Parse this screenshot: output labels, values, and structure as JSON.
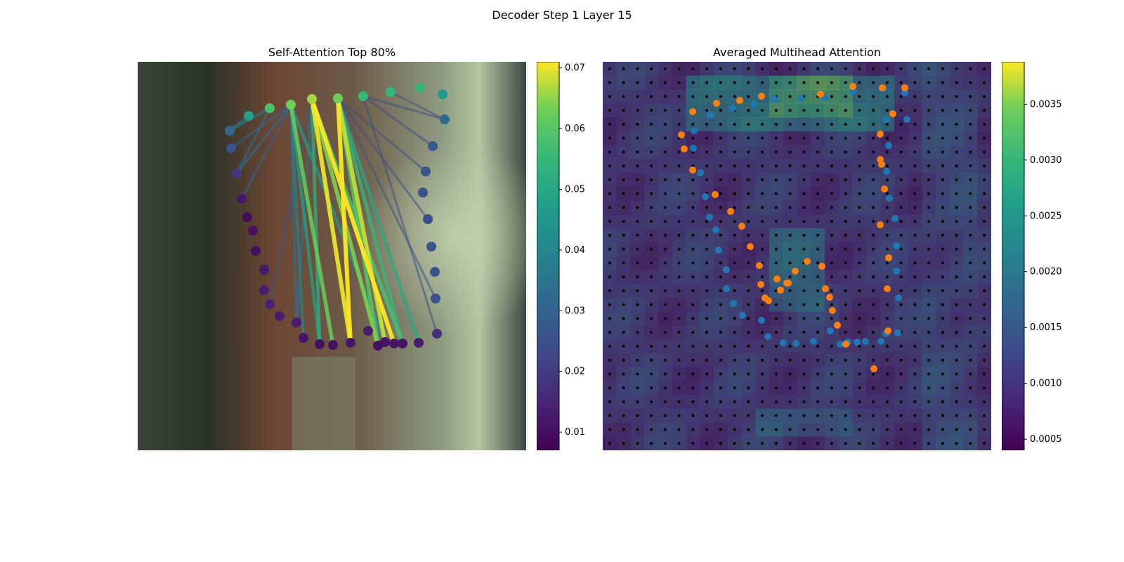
{
  "figure": {
    "suptitle": "Decoder Step 1 Layer 15"
  },
  "chart_data": [
    {
      "type": "scatter",
      "title": "Self-Attention Top 80%",
      "description_series": "keypoints colored by attention weight, with edge lines colored by attention weight",
      "colormap": "viridis",
      "colorbar": {
        "min": 0.007,
        "max": 0.071,
        "ticks": [
          "0.01",
          "0.02",
          "0.03",
          "0.04",
          "0.05",
          "0.06",
          "0.07"
        ]
      },
      "points": [
        {
          "x": 158,
          "y": 77,
          "w": 0.048
        },
        {
          "x": 188,
          "y": 66,
          "w": 0.058
        },
        {
          "x": 218,
          "y": 61,
          "w": 0.063
        },
        {
          "x": 248,
          "y": 53,
          "w": 0.066
        },
        {
          "x": 285,
          "y": 52,
          "w": 0.063
        },
        {
          "x": 321,
          "y": 49,
          "w": 0.055
        },
        {
          "x": 360,
          "y": 43,
          "w": 0.054
        },
        {
          "x": 402,
          "y": 37,
          "w": 0.054
        },
        {
          "x": 434,
          "y": 46,
          "w": 0.046
        },
        {
          "x": 437,
          "y": 82,
          "w": 0.031
        },
        {
          "x": 420,
          "y": 120,
          "w": 0.027
        },
        {
          "x": 410,
          "y": 156,
          "w": 0.026
        },
        {
          "x": 406,
          "y": 186,
          "w": 0.025
        },
        {
          "x": 413,
          "y": 224,
          "w": 0.024
        },
        {
          "x": 418,
          "y": 263,
          "w": 0.026
        },
        {
          "x": 423,
          "y": 299,
          "w": 0.025
        },
        {
          "x": 424,
          "y": 337,
          "w": 0.025
        },
        {
          "x": 426,
          "y": 387,
          "w": 0.017
        },
        {
          "x": 400,
          "y": 400,
          "w": 0.013
        },
        {
          "x": 377,
          "y": 401,
          "w": 0.011
        },
        {
          "x": 365,
          "y": 401,
          "w": 0.011
        },
        {
          "x": 352,
          "y": 399,
          "w": 0.011
        },
        {
          "x": 342,
          "y": 404,
          "w": 0.01
        },
        {
          "x": 328,
          "y": 383,
          "w": 0.013
        },
        {
          "x": 303,
          "y": 400,
          "w": 0.011
        },
        {
          "x": 278,
          "y": 403,
          "w": 0.01
        },
        {
          "x": 259,
          "y": 402,
          "w": 0.01
        },
        {
          "x": 236,
          "y": 393,
          "w": 0.011
        },
        {
          "x": 226,
          "y": 371,
          "w": 0.013
        },
        {
          "x": 202,
          "y": 362,
          "w": 0.013
        },
        {
          "x": 188,
          "y": 345,
          "w": 0.014
        },
        {
          "x": 180,
          "y": 325,
          "w": 0.013
        },
        {
          "x": 180,
          "y": 296,
          "w": 0.012
        },
        {
          "x": 168,
          "y": 269,
          "w": 0.01
        },
        {
          "x": 164,
          "y": 240,
          "w": 0.01
        },
        {
          "x": 156,
          "y": 221,
          "w": 0.009
        },
        {
          "x": 148,
          "y": 195,
          "w": 0.012
        },
        {
          "x": 141,
          "y": 159,
          "w": 0.019
        },
        {
          "x": 133,
          "y": 123,
          "w": 0.025
        },
        {
          "x": 131,
          "y": 98,
          "w": 0.03
        }
      ],
      "edges": [
        {
          "from": 2,
          "to": 21,
          "w": 0.046
        },
        {
          "from": 2,
          "to": 25,
          "w": 0.062
        },
        {
          "from": 2,
          "to": 26,
          "w": 0.048
        },
        {
          "from": 3,
          "to": 20,
          "w": 0.071
        },
        {
          "from": 3,
          "to": 22,
          "w": 0.064
        },
        {
          "from": 3,
          "to": 24,
          "w": 0.07
        },
        {
          "from": 3,
          "to": 26,
          "w": 0.052
        },
        {
          "from": 3,
          "to": 19,
          "w": 0.058
        },
        {
          "from": 4,
          "to": 21,
          "w": 0.068
        },
        {
          "from": 4,
          "to": 22,
          "w": 0.06
        },
        {
          "from": 4,
          "to": 24,
          "w": 0.071
        },
        {
          "from": 4,
          "to": 19,
          "w": 0.055
        },
        {
          "from": 4,
          "to": 18,
          "w": 0.05
        },
        {
          "from": 2,
          "to": 27,
          "w": 0.04
        },
        {
          "from": 2,
          "to": 28,
          "w": 0.034
        },
        {
          "from": 2,
          "to": 36,
          "w": 0.03
        },
        {
          "from": 2,
          "to": 37,
          "w": 0.032
        },
        {
          "from": 2,
          "to": 38,
          "w": 0.03
        },
        {
          "from": 1,
          "to": 39,
          "w": 0.036
        },
        {
          "from": 1,
          "to": 37,
          "w": 0.032
        },
        {
          "from": 0,
          "to": 39,
          "w": 0.034
        },
        {
          "from": 3,
          "to": 28,
          "w": 0.034
        },
        {
          "from": 3,
          "to": 30,
          "w": 0.026
        },
        {
          "from": 4,
          "to": 11,
          "w": 0.024
        },
        {
          "from": 4,
          "to": 13,
          "w": 0.024
        },
        {
          "from": 5,
          "to": 10,
          "w": 0.022
        },
        {
          "from": 5,
          "to": 9,
          "w": 0.024
        },
        {
          "from": 4,
          "to": 16,
          "w": 0.026
        },
        {
          "from": 6,
          "to": 9,
          "w": 0.022
        },
        {
          "from": 5,
          "to": 17,
          "w": 0.024
        }
      ]
    },
    {
      "type": "scatter",
      "title": "Averaged Multihead Attention",
      "description_series": "attention heatmap over a grid with two keypoint sets",
      "colormap": "viridis",
      "colorbar": {
        "min": 0.0004,
        "max": 0.00388,
        "ticks": [
          "0.0005",
          "0.0010",
          "0.0015",
          "0.0020",
          "0.0025",
          "0.0030",
          "0.0035"
        ]
      },
      "series": [
        {
          "name": "",
          "color": "#1f77b4",
          "points": [
            [
              130,
              98
            ],
            [
              129,
              123
            ],
            [
              139,
              158
            ],
            [
              146,
              192
            ],
            [
              152,
              221
            ],
            [
              161,
              239
            ],
            [
              165,
              268
            ],
            [
              176,
              296
            ],
            [
              176,
              323
            ],
            [
              186,
              344
            ],
            [
              199,
              361
            ],
            [
              226,
              368
            ],
            [
              235,
              391
            ],
            [
              257,
              400
            ],
            [
              275,
              401
            ],
            [
              300,
              398
            ],
            [
              324,
              383
            ],
            [
              338,
              402
            ],
            [
              349,
              399
            ],
            [
              362,
              399
            ],
            [
              374,
              398
            ],
            [
              396,
              398
            ],
            [
              403,
              387
            ],
            [
              420,
              386
            ],
            [
              421,
              336
            ],
            [
              418,
              298
            ],
            [
              418,
              262
            ],
            [
              416,
              223
            ],
            [
              408,
              194
            ],
            [
              404,
              156
            ],
            [
              407,
              119
            ],
            [
              403,
              82
            ],
            [
              400,
              38
            ],
            [
              430,
              44
            ],
            [
              433,
              82
            ],
            [
              356,
              42
            ],
            [
              316,
              51
            ],
            [
              282,
              52
            ],
            [
              244,
              53
            ],
            [
              215,
              60
            ],
            [
              185,
              66
            ],
            [
              153,
              76
            ]
          ]
        },
        {
          "name": "",
          "color": "#ff7f0e",
          "points": [
            [
              112,
              104
            ],
            [
              116,
              124
            ],
            [
              128,
              71
            ],
            [
              128,
              154
            ],
            [
              160,
              189
            ],
            [
              162,
              59
            ],
            [
              182,
              213
            ],
            [
              195,
              55
            ],
            [
              198,
              234
            ],
            [
              210,
              263
            ],
            [
              226,
              49
            ],
            [
              223,
              290
            ],
            [
              225,
              317
            ],
            [
              231,
              336
            ],
            [
              236,
              340
            ],
            [
              248,
              309
            ],
            [
              253,
              325
            ],
            [
              262,
              315
            ],
            [
              264,
              315
            ],
            [
              274,
              298
            ],
            [
              291,
              284
            ],
            [
              312,
              291
            ],
            [
              310,
              46
            ],
            [
              317,
              323
            ],
            [
              323,
              335
            ],
            [
              327,
              354
            ],
            [
              334,
              375
            ],
            [
              346,
              402
            ],
            [
              356,
              35
            ],
            [
              386,
              437
            ],
            [
              398,
              37
            ],
            [
              401,
              181
            ],
            [
              405,
              323
            ],
            [
              406,
              383
            ],
            [
              407,
              279
            ],
            [
              397,
              146
            ],
            [
              395,
              103
            ],
            [
              395,
              139
            ],
            [
              395,
              232
            ],
            [
              413,
              74
            ],
            [
              430,
              37
            ]
          ]
        }
      ]
    }
  ]
}
